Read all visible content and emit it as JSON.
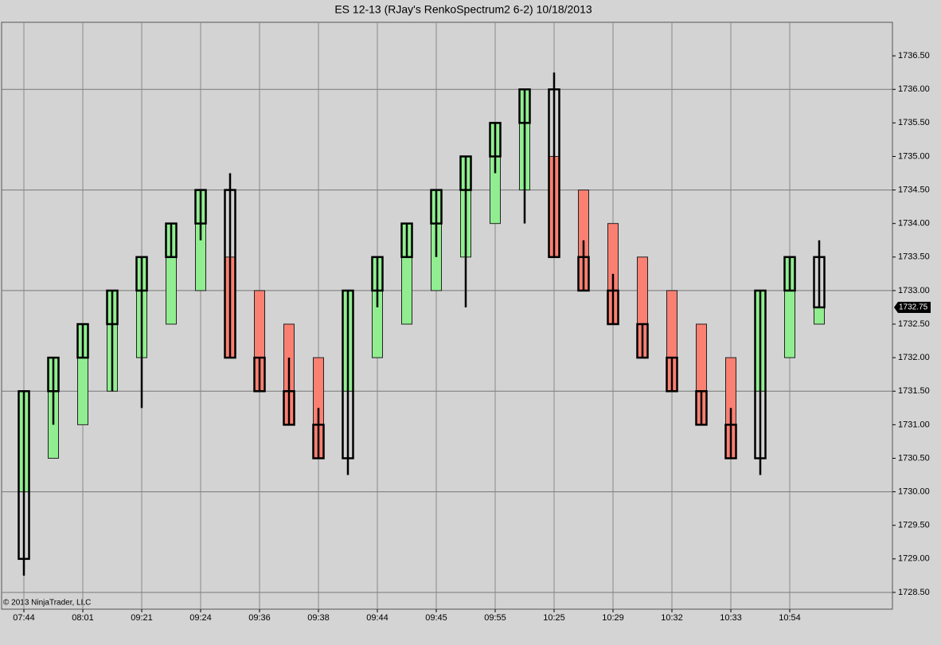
{
  "chart_data": {
    "type": "renko",
    "title": "ES 12-13 (RJay's RenkoSpectrum2  6-2)  10/18/2013",
    "copyright": "© 2013 NinjaTrader, LLC",
    "categories": [
      "07:44",
      null,
      "08:01",
      null,
      "09:21",
      null,
      "09:24",
      null,
      "09:36",
      null,
      "09:38",
      null,
      "09:44",
      null,
      "09:45",
      null,
      "09:55",
      null,
      "10:25",
      null,
      "10:29",
      null,
      "10:32",
      null,
      "10:33",
      null,
      "10:54",
      null
    ],
    "box_open": [
      1730.0,
      1730.5,
      1731.0,
      1731.5,
      1732.0,
      1732.5,
      1733.0,
      1733.5,
      1733.0,
      1732.5,
      1732.0,
      1731.5,
      1732.0,
      1732.5,
      1733.0,
      1733.5,
      1734.0,
      1734.5,
      1735.0,
      1734.5,
      1734.0,
      1733.5,
      1733.0,
      1732.5,
      1732.0,
      1731.5,
      1732.0,
      1732.5
    ],
    "box_close": [
      1731.5,
      1732.0,
      1732.5,
      1733.0,
      1733.5,
      1734.0,
      1734.5,
      1732.0,
      1731.5,
      1731.0,
      1730.5,
      1733.0,
      1733.5,
      1734.0,
      1734.5,
      1735.0,
      1735.5,
      1736.0,
      1733.5,
      1733.0,
      1732.5,
      1732.0,
      1731.5,
      1731.0,
      1730.5,
      1733.0,
      1733.5,
      1732.75
    ],
    "open": [
      1731.5,
      1731.5,
      1732.0,
      1732.5,
      1733.0,
      1733.5,
      1734.0,
      1734.5,
      1732.0,
      1731.5,
      1731.0,
      1730.5,
      1733.0,
      1733.5,
      1734.0,
      1734.5,
      1735.0,
      1735.5,
      1736.0,
      1733.5,
      1733.0,
      1732.5,
      1732.0,
      1731.5,
      1731.0,
      1730.5,
      1733.0,
      1733.5
    ],
    "close": [
      1729.0,
      1732.0,
      1732.5,
      1733.0,
      1733.5,
      1734.0,
      1734.5,
      1732.0,
      1731.5,
      1731.0,
      1730.5,
      1733.0,
      1733.5,
      1734.0,
      1734.5,
      1735.0,
      1735.5,
      1736.0,
      1733.5,
      1733.0,
      1732.5,
      1732.0,
      1731.5,
      1731.0,
      1730.5,
      1733.0,
      1733.5,
      1732.75
    ],
    "high": [
      1731.5,
      1732.0,
      1732.5,
      1733.0,
      1733.5,
      1734.0,
      1734.5,
      1734.75,
      1732.0,
      1732.0,
      1731.25,
      1733.0,
      1733.5,
      1734.0,
      1734.5,
      1735.0,
      1735.5,
      1736.0,
      1736.25,
      1733.75,
      1733.25,
      1732.5,
      1732.0,
      1731.5,
      1731.25,
      1733.0,
      1733.5,
      1733.75
    ],
    "low": [
      1728.75,
      1731.0,
      1732.0,
      1731.5,
      1731.25,
      1733.5,
      1733.75,
      1732.0,
      1731.5,
      1731.0,
      1730.5,
      1730.25,
      1732.75,
      1733.5,
      1733.5,
      1732.75,
      1734.75,
      1734.0,
      1733.5,
      1733.0,
      1732.5,
      1732.0,
      1731.5,
      1731.0,
      1730.5,
      1730.25,
      1733.0,
      1732.75
    ],
    "up_color": "#90ee90",
    "down_color": "#fa8072",
    "last_price": 1732.75,
    "ylim": [
      1728.25,
      1737.0
    ],
    "yticks": [
      {
        "value": 1728.5,
        "label": "1728.50"
      },
      {
        "value": 1729.0,
        "label": "1729.00"
      },
      {
        "value": 1729.5,
        "label": "1729.50"
      },
      {
        "value": 1730.0,
        "label": "1730.00"
      },
      {
        "value": 1730.5,
        "label": "1730.50"
      },
      {
        "value": 1731.0,
        "label": "1731.00"
      },
      {
        "value": 1731.5,
        "label": "1731.50"
      },
      {
        "value": 1732.0,
        "label": "1732.00"
      },
      {
        "value": 1732.5,
        "label": "1732.50"
      },
      {
        "value": 1733.0,
        "label": "1733.00"
      },
      {
        "value": 1733.5,
        "label": "1733.50"
      },
      {
        "value": 1734.0,
        "label": "1734.00"
      },
      {
        "value": 1734.5,
        "label": "1734.50"
      },
      {
        "value": 1735.0,
        "label": "1735.00"
      },
      {
        "value": 1735.5,
        "label": "1735.50"
      },
      {
        "value": 1736.0,
        "label": "1736.00"
      },
      {
        "value": 1736.5,
        "label": "1736.50"
      }
    ],
    "ygrid": [
      1728.5,
      1730.0,
      1731.5,
      1733.0,
      1734.5,
      1736.0
    ]
  }
}
